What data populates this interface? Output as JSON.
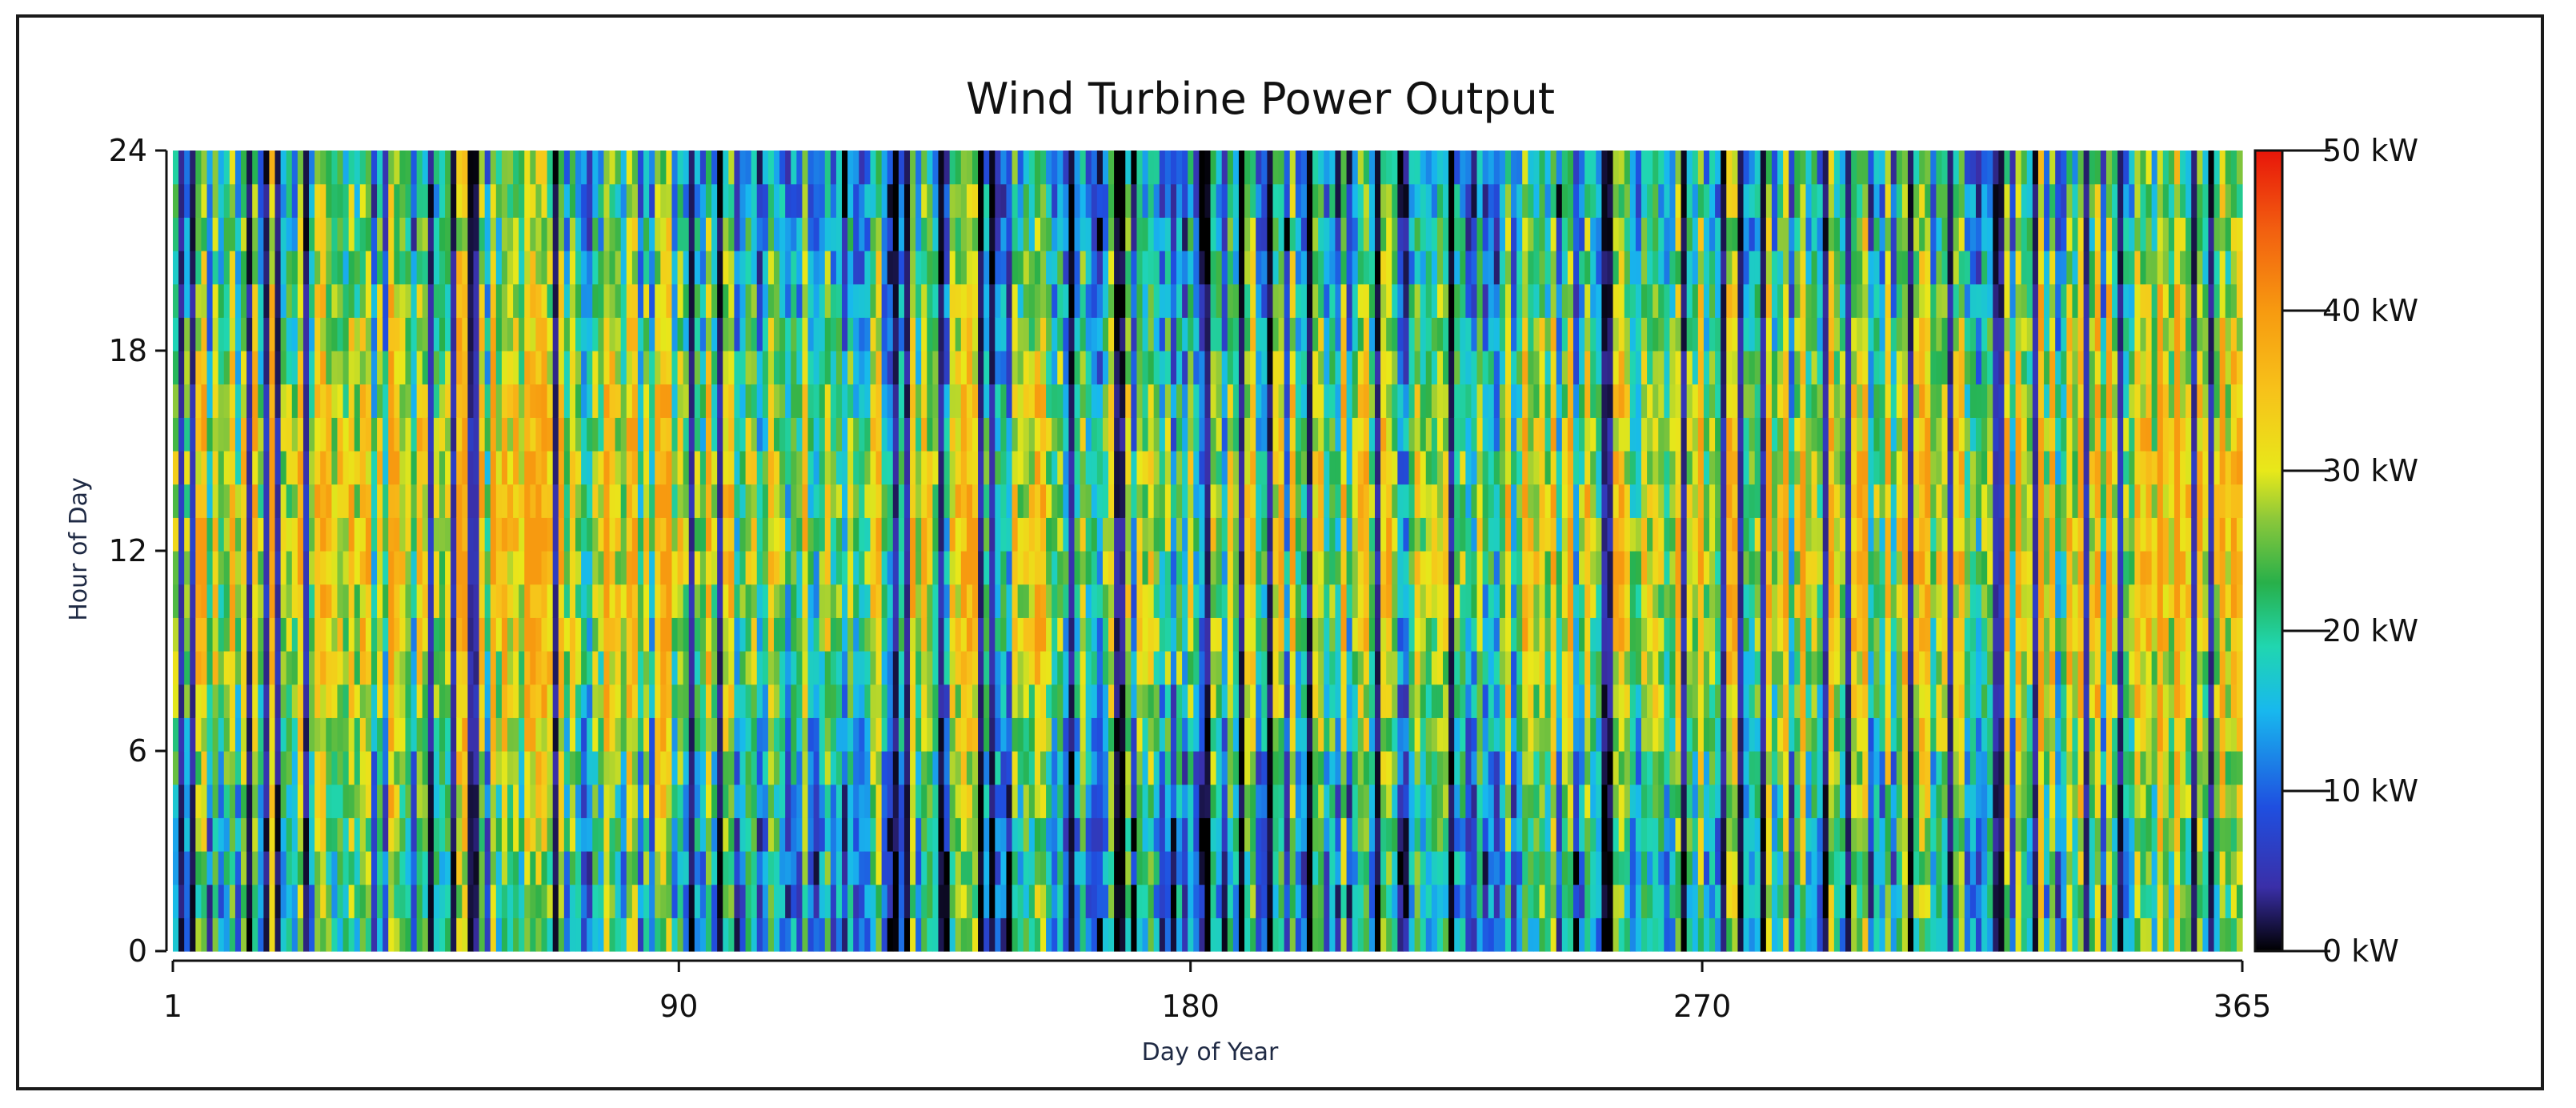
{
  "chart_data": {
    "type": "heatmap",
    "title": "Wind Turbine Power Output",
    "xlabel": "Day of Year",
    "ylabel": "Hour of Day",
    "x_range": [
      1,
      365
    ],
    "y_range": [
      0,
      24
    ],
    "x_ticks": [
      "1",
      "90",
      "180",
      "270",
      "365"
    ],
    "y_ticks": [
      "0",
      "6",
      "12",
      "18",
      "24"
    ],
    "x_tick_values": [
      1,
      90,
      180,
      270,
      365
    ],
    "y_tick_values": [
      0,
      6,
      12,
      18,
      24
    ],
    "colorbar": {
      "range": [
        0,
        50
      ],
      "unit": "kW",
      "ticks": [
        "0 kW",
        "10 kW",
        "20 kW",
        "30 kW",
        "40 kW",
        "50 kW"
      ],
      "tick_values": [
        0,
        10,
        20,
        30,
        40,
        50
      ],
      "colors": [
        "#000000",
        "#3a2fa8",
        "#1f4fe0",
        "#18b8ee",
        "#20d6b0",
        "#28b04a",
        "#8cc83a",
        "#e8e81a",
        "#f7c21a",
        "#f79a10",
        "#f26010",
        "#e8160a"
      ]
    },
    "grid": false,
    "cell_values_note": "Hourly power output per day; dense mosaic not individually readable"
  }
}
